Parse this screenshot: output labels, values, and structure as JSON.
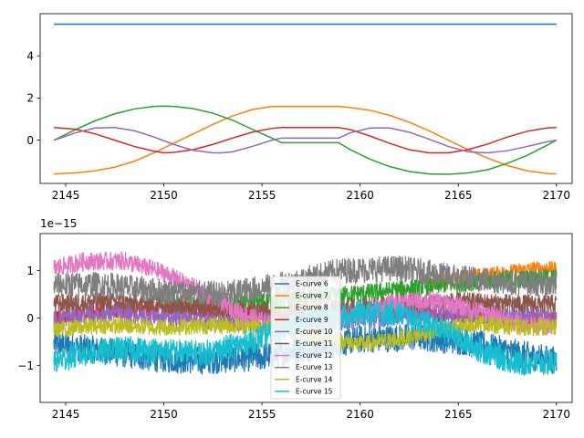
{
  "chart_data": [
    {
      "type": "line",
      "xlim": [
        2143.7,
        2170.8
      ],
      "ylim": [
        -2.05,
        6.0
      ],
      "x_ticks": [
        2145,
        2150,
        2155,
        2160,
        2165,
        2170
      ],
      "y_ticks": [
        0,
        2,
        4
      ],
      "x_range": [
        2144.4,
        2170.0
      ],
      "grid": false,
      "legend": "none",
      "series": [
        {
          "color": "#1f77b4",
          "x": [
            2144.4,
            2170.0
          ],
          "y": [
            5.5,
            5.5
          ]
        },
        {
          "color": "#ff7f0e",
          "x": [
            2144.4,
            2145.5,
            2146.5,
            2147.5,
            2148.5,
            2149.5,
            2150.5,
            2151.5,
            2152.5,
            2153.5,
            2154.5,
            2155.5,
            2156.0,
            2158.9,
            2159.5,
            2160.5,
            2161.5,
            2162.5,
            2163.5,
            2164.5,
            2165.5,
            2166.5,
            2167.5,
            2168.5,
            2169.5,
            2170.0
          ],
          "y": [
            -1.6,
            -1.55,
            -1.45,
            -1.28,
            -1.0,
            -0.6,
            -0.15,
            0.3,
            0.75,
            1.15,
            1.45,
            1.6,
            1.6,
            1.6,
            1.55,
            1.42,
            1.18,
            0.85,
            0.45,
            0.0,
            -0.45,
            -0.85,
            -1.2,
            -1.45,
            -1.58,
            -1.6
          ]
        },
        {
          "color": "#2ca02c",
          "x": [
            2144.4,
            2145.5,
            2146.5,
            2147.5,
            2148.5,
            2149.5,
            2150.0,
            2150.5,
            2151.5,
            2152.5,
            2153.5,
            2154.5,
            2155.5,
            2156.0,
            2158.9,
            2159.5,
            2160.5,
            2161.5,
            2162.5,
            2163.5,
            2164.5,
            2165.5,
            2166.5,
            2167.5,
            2168.5,
            2169.5,
            2170.0
          ],
          "y": [
            0.0,
            0.5,
            0.92,
            1.25,
            1.48,
            1.6,
            1.62,
            1.6,
            1.5,
            1.28,
            0.95,
            0.52,
            0.1,
            -0.12,
            -0.12,
            -0.45,
            -0.9,
            -1.25,
            -1.48,
            -1.6,
            -1.62,
            -1.55,
            -1.4,
            -1.1,
            -0.72,
            -0.25,
            0.0
          ]
        },
        {
          "color": "#d62728",
          "x": [
            2144.4,
            2145.5,
            2146.5,
            2147.5,
            2148.5,
            2149.5,
            2150.0,
            2150.5,
            2151.5,
            2152.5,
            2153.5,
            2154.5,
            2155.5,
            2156.0,
            2158.9,
            2159.5,
            2160.5,
            2161.5,
            2162.5,
            2163.5,
            2164.5,
            2165.5,
            2166.5,
            2167.5,
            2168.5,
            2169.5,
            2170.0
          ],
          "y": [
            0.6,
            0.52,
            0.3,
            0.0,
            -0.3,
            -0.52,
            -0.6,
            -0.58,
            -0.45,
            -0.2,
            0.1,
            0.38,
            0.56,
            0.6,
            0.6,
            0.5,
            0.2,
            -0.15,
            -0.45,
            -0.6,
            -0.6,
            -0.45,
            -0.18,
            0.15,
            0.42,
            0.58,
            0.6
          ]
        },
        {
          "color": "#9467bd",
          "x": [
            2144.4,
            2145.5,
            2146.5,
            2147.5,
            2148.5,
            2149.5,
            2150.5,
            2151.5,
            2152.5,
            2153.0,
            2153.5,
            2154.5,
            2155.5,
            2156.0,
            2158.9,
            2159.5,
            2160.5,
            2161.5,
            2162.5,
            2163.5,
            2164.5,
            2165.5,
            2166.5,
            2167.5,
            2168.5,
            2169.5,
            2170.0
          ],
          "y": [
            0.0,
            0.35,
            0.58,
            0.6,
            0.45,
            0.15,
            -0.2,
            -0.48,
            -0.6,
            -0.6,
            -0.55,
            -0.3,
            0.0,
            0.1,
            0.1,
            0.35,
            0.58,
            0.58,
            0.38,
            0.05,
            -0.3,
            -0.55,
            -0.6,
            -0.5,
            -0.3,
            -0.08,
            0.0
          ]
        }
      ]
    },
    {
      "type": "line",
      "xlim": [
        2143.7,
        2170.8
      ],
      "ylim": [
        -1.78,
        1.78
      ],
      "x_ticks": [
        2145,
        2150,
        2155,
        2160,
        2165,
        2170
      ],
      "y_ticks": [
        -1,
        0,
        1
      ],
      "y_offset_label": "1e−15",
      "grid": false,
      "legend": "center",
      "series": [
        {
          "name": "E-curve 6",
          "color": "#1f77b4",
          "profile_x": [
            2144.4,
            2147.0,
            2149.5,
            2152.0,
            2155.0,
            2157.5,
            2160.0,
            2163.0,
            2165.5,
            2168.0,
            2170.0
          ],
          "center": [
            -0.55,
            -0.7,
            -0.85,
            -0.9,
            -0.82,
            -0.62,
            -0.45,
            -0.4,
            -0.5,
            -0.75,
            -0.9
          ],
          "amp": 0.3
        },
        {
          "name": "E-curve 7",
          "color": "#ff7f0e",
          "profile_x": [
            2163.5,
            2165.0,
            2167.0,
            2169.0,
            2170.0
          ],
          "center": [
            0.7,
            0.85,
            0.95,
            1.05,
            1.05
          ],
          "amp": 0.15
        },
        {
          "name": "E-curve 8",
          "color": "#2ca02c",
          "profile_x": [
            2150.0,
            2152.0,
            2155.0,
            2158.0,
            2161.0,
            2164.0,
            2167.0,
            2170.0
          ],
          "center": [
            0.3,
            0.3,
            0.35,
            0.45,
            0.55,
            0.7,
            0.8,
            0.85
          ],
          "amp": 0.2
        },
        {
          "name": "E-curve 9",
          "color": "#d62728",
          "profile_x": [
            2144.4,
            2147.0,
            2150.0,
            2153.0,
            2156.0,
            2159.0,
            2162.0,
            2165.0,
            2168.0,
            2170.0
          ],
          "center": [
            0.0,
            0.15,
            0.2,
            0.15,
            0.05,
            0.1,
            0.15,
            0.05,
            -0.05,
            -0.05
          ],
          "amp": 0.18
        },
        {
          "name": "E-curve 10",
          "color": "#9467bd",
          "profile_x": [
            2144.4,
            2147.0,
            2150.0,
            2153.0,
            2156.0,
            2159.0,
            2162.0,
            2165.0,
            2168.0,
            2170.0
          ],
          "center": [
            0.0,
            0.1,
            0.05,
            -0.05,
            -0.1,
            -0.05,
            0.05,
            0.1,
            0.05,
            0.0
          ],
          "amp": 0.22
        },
        {
          "name": "E-curve 11",
          "color": "#8c564b",
          "profile_x": [
            2144.4,
            2147.0,
            2150.0,
            2153.0,
            2156.0,
            2159.0,
            2162.0,
            2165.0,
            2168.0,
            2170.0
          ],
          "center": [
            0.3,
            0.35,
            0.3,
            0.2,
            0.15,
            0.2,
            0.3,
            0.35,
            0.3,
            0.3
          ],
          "amp": 0.2
        },
        {
          "name": "E-curve 12",
          "color": "#e377c2",
          "profile_x": [
            2144.4,
            2146.0,
            2148.0,
            2150.0,
            2152.0,
            2154.0,
            2156.0,
            2158.0,
            2160.0,
            2162.0,
            2164.0,
            2166.0,
            2168.0,
            2170.0
          ],
          "center": [
            1.05,
            1.2,
            1.2,
            0.95,
            0.55,
            0.1,
            -0.2,
            -0.15,
            0.1,
            0.35,
            0.35,
            0.15,
            -0.1,
            -0.2
          ],
          "amp": 0.2
        },
        {
          "name": "E-curve 13",
          "color": "#7f7f7f",
          "profile_x": [
            2144.4,
            2147.0,
            2150.0,
            2153.0,
            2156.0,
            2159.0,
            2162.0,
            2165.0,
            2168.0,
            2170.0
          ],
          "center": [
            0.7,
            0.7,
            0.55,
            0.5,
            0.7,
            1.0,
            1.05,
            0.85,
            0.75,
            0.7
          ],
          "amp": 0.28
        },
        {
          "name": "E-curve 14",
          "color": "#bcbd22",
          "profile_x": [
            2144.4,
            2147.0,
            2150.0,
            2153.0,
            2156.0,
            2158.0,
            2160.0,
            2162.0,
            2164.0,
            2166.0,
            2168.0,
            2170.0
          ],
          "center": [
            -0.25,
            -0.15,
            -0.2,
            -0.15,
            -0.2,
            -0.4,
            -0.55,
            -0.45,
            -0.25,
            -0.1,
            -0.2,
            -0.2
          ],
          "amp": 0.18
        },
        {
          "name": "E-curve 15",
          "color": "#17becf",
          "profile_x": [
            2144.4,
            2146.0,
            2148.0,
            2150.0,
            2152.0,
            2154.0,
            2156.0,
            2158.0,
            2160.0,
            2162.0,
            2164.0,
            2166.0,
            2168.0,
            2170.0
          ],
          "center": [
            -0.9,
            -0.75,
            -0.65,
            -0.7,
            -0.75,
            -0.55,
            -0.25,
            0.0,
            0.1,
            0.1,
            -0.2,
            -0.65,
            -0.95,
            -0.95
          ],
          "amp": 0.28
        }
      ]
    }
  ]
}
